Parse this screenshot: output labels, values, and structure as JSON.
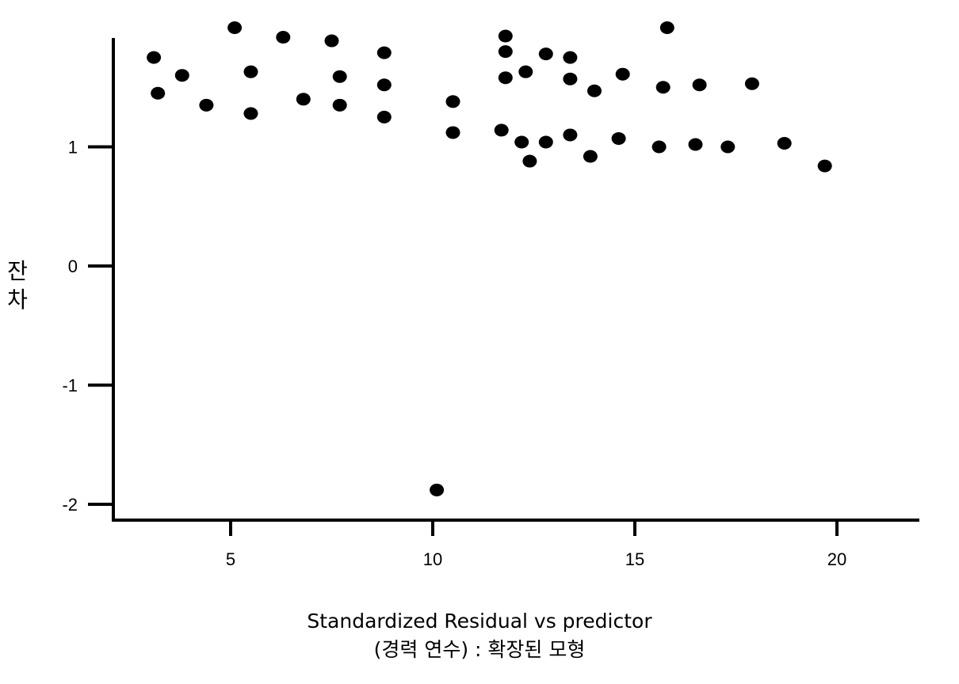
{
  "chart_data": {
    "type": "scatter",
    "title": "",
    "xlabel_line1": "Standardized Residual vs predictor",
    "xlabel_line2": "(경력 연수) : 확장된 모형",
    "ylabel": "잔\n차",
    "xlim": [
      2.3,
      21.5
    ],
    "ylim": [
      -2.12,
      1.92
    ],
    "x_ticks": [
      5,
      10,
      15,
      20
    ],
    "y_ticks": [
      1,
      0,
      -1,
      -2
    ],
    "grid": false,
    "legend": "none",
    "marker_color": "#000000",
    "points": [
      {
        "x": 3.1,
        "y": 1.75
      },
      {
        "x": 3.2,
        "y": 1.45
      },
      {
        "x": 3.8,
        "y": 1.6
      },
      {
        "x": 4.4,
        "y": 1.35
      },
      {
        "x": 5.1,
        "y": 2.0
      },
      {
        "x": 5.5,
        "y": 1.63
      },
      {
        "x": 5.5,
        "y": 1.28
      },
      {
        "x": 6.3,
        "y": 1.92
      },
      {
        "x": 6.8,
        "y": 1.4
      },
      {
        "x": 7.5,
        "y": 1.89
      },
      {
        "x": 7.7,
        "y": 1.59
      },
      {
        "x": 7.7,
        "y": 1.35
      },
      {
        "x": 8.8,
        "y": 1.79
      },
      {
        "x": 8.8,
        "y": 1.52
      },
      {
        "x": 8.8,
        "y": 1.25
      },
      {
        "x": 10.1,
        "y": -1.88
      },
      {
        "x": 10.5,
        "y": 1.38
      },
      {
        "x": 10.5,
        "y": 1.12
      },
      {
        "x": 11.7,
        "y": 1.14
      },
      {
        "x": 11.8,
        "y": 1.93
      },
      {
        "x": 11.8,
        "y": 1.8
      },
      {
        "x": 11.8,
        "y": 1.58
      },
      {
        "x": 12.2,
        "y": 1.04
      },
      {
        "x": 12.3,
        "y": 1.63
      },
      {
        "x": 12.4,
        "y": 0.88
      },
      {
        "x": 12.8,
        "y": 1.78
      },
      {
        "x": 12.8,
        "y": 1.04
      },
      {
        "x": 13.4,
        "y": 1.75
      },
      {
        "x": 13.4,
        "y": 1.57
      },
      {
        "x": 13.4,
        "y": 1.1
      },
      {
        "x": 13.9,
        "y": 0.92
      },
      {
        "x": 14.0,
        "y": 1.47
      },
      {
        "x": 14.6,
        "y": 1.07
      },
      {
        "x": 14.7,
        "y": 1.61
      },
      {
        "x": 15.6,
        "y": 1.0
      },
      {
        "x": 15.7,
        "y": 1.5
      },
      {
        "x": 15.8,
        "y": 2.0
      },
      {
        "x": 16.5,
        "y": 1.02
      },
      {
        "x": 16.6,
        "y": 1.52
      },
      {
        "x": 17.3,
        "y": 1.0
      },
      {
        "x": 17.9,
        "y": 1.53
      },
      {
        "x": 18.7,
        "y": 1.03
      },
      {
        "x": 19.7,
        "y": 0.84
      }
    ]
  }
}
